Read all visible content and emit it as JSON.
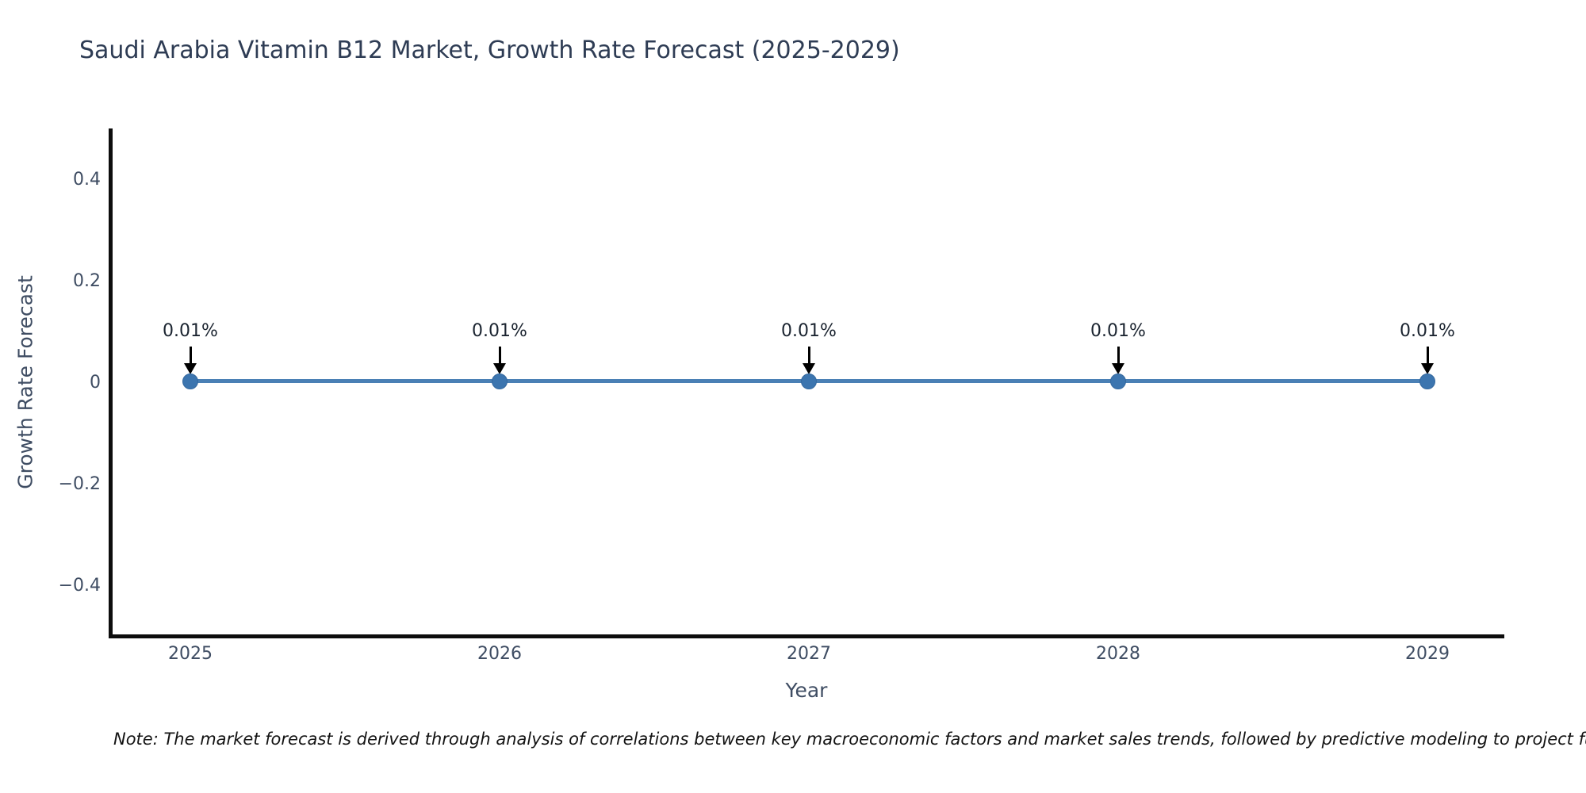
{
  "chart_data": {
    "type": "line",
    "title": "Saudi Arabia Vitamin B12 Market, Growth Rate Forecast (2025-2029)",
    "xlabel": "Year",
    "ylabel": "Growth Rate Forecast",
    "x": [
      "2025",
      "2026",
      "2027",
      "2028",
      "2029"
    ],
    "series": [
      {
        "name": "Growth Rate Forecast",
        "values": [
          0.0001,
          0.0001,
          0.0001,
          0.0001,
          0.0001
        ]
      }
    ],
    "point_labels": [
      "0.01%",
      "0.01%",
      "0.01%",
      "0.01%",
      "0.01%"
    ],
    "yticks": [
      "0.4",
      "0.2",
      "0",
      "−0.2",
      "−0.4"
    ],
    "ylim": [
      -0.5,
      0.5
    ],
    "grid": false,
    "legend_position": "none",
    "annotation_arrow": "down-arrow",
    "colors": {
      "line": "#4a80b5",
      "marker": "#3c75af",
      "arrow": "#000000",
      "spine": "#0d0d0d",
      "title_text": "#2e3c54",
      "tick_text": "#3f4d63",
      "annotation_text": "#1b2430",
      "note_text": "#131313",
      "background": "#ffffff"
    }
  },
  "note": {
    "text": "Note: The market forecast is derived through analysis of correlations between key macroeconomic factors and market sales trends, followed by predictive modeling to project future sa"
  }
}
